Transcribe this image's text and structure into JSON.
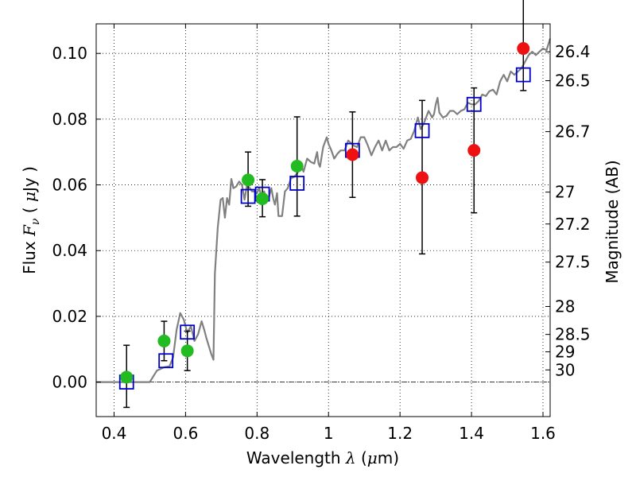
{
  "chart_data": {
    "type": "scatter",
    "xlabel": {
      "prefix": "Wavelength ",
      "symbol": "λ",
      "unit_open": " (",
      "unit_mu": "μ",
      "unit_close": "m)"
    },
    "ylabel": {
      "prefix": "Flux ",
      "symbol": "F",
      "sub": "ν",
      "unit_open": " ( ",
      "unit_mu": "μ",
      "unit_close": "Jy )"
    },
    "ylabel_right": "Magnitude (AB)",
    "xlim": [
      0.35,
      1.62
    ],
    "ylim": [
      -0.0105,
      0.109
    ],
    "x_ticks": [
      0.4,
      0.6,
      0.8,
      1.0,
      1.2,
      1.4,
      1.6
    ],
    "x_tick_labels": [
      "0.4",
      "0.6",
      "0.8",
      "1",
      "1.2",
      "1.4",
      "1.6"
    ],
    "y_ticks": [
      0.0,
      0.02,
      0.04,
      0.06,
      0.08,
      0.1
    ],
    "y_tick_labels": [
      "0.00",
      "0.02",
      "0.04",
      "0.06",
      "0.08",
      "0.10"
    ],
    "right_ticks": [
      {
        "label": "26.4",
        "flux": 0.1005
      },
      {
        "label": "26.5",
        "flux": 0.0917
      },
      {
        "label": "26.7",
        "flux": 0.0762
      },
      {
        "label": "27",
        "flux": 0.0578
      },
      {
        "label": "27.2",
        "flux": 0.0481
      },
      {
        "label": "27.5",
        "flux": 0.0365
      },
      {
        "label": "28",
        "flux": 0.023
      },
      {
        "label": "28.5",
        "flux": 0.0145
      },
      {
        "label": "29",
        "flux": 0.0092
      },
      {
        "label": "30",
        "flux": 0.0037
      }
    ],
    "grid": true,
    "zero_line": true,
    "model_spectrum": {
      "color": "#808080",
      "points": [
        [
          0.35,
          0.0
        ],
        [
          0.48,
          0.0
        ],
        [
          0.5,
          0.0
        ],
        [
          0.52,
          0.0035
        ],
        [
          0.54,
          0.0045
        ],
        [
          0.555,
          0.0048
        ],
        [
          0.565,
          0.0075
        ],
        [
          0.575,
          0.016
        ],
        [
          0.585,
          0.021
        ],
        [
          0.595,
          0.019
        ],
        [
          0.605,
          0.015
        ],
        [
          0.615,
          0.017
        ],
        [
          0.625,
          0.0125
        ],
        [
          0.635,
          0.0145
        ],
        [
          0.645,
          0.0185
        ],
        [
          0.652,
          0.016
        ],
        [
          0.658,
          0.0135
        ],
        [
          0.665,
          0.011
        ],
        [
          0.672,
          0.0085
        ],
        [
          0.678,
          0.0068
        ],
        [
          0.682,
          0.033
        ],
        [
          0.69,
          0.047
        ],
        [
          0.698,
          0.0555
        ],
        [
          0.704,
          0.056
        ],
        [
          0.71,
          0.05
        ],
        [
          0.716,
          0.056
        ],
        [
          0.722,
          0.054
        ],
        [
          0.728,
          0.0618
        ],
        [
          0.734,
          0.059
        ],
        [
          0.742,
          0.0595
        ],
        [
          0.75,
          0.061
        ],
        [
          0.758,
          0.06
        ],
        [
          0.765,
          0.0555
        ],
        [
          0.772,
          0.06
        ],
        [
          0.78,
          0.059
        ],
        [
          0.786,
          0.058
        ],
        [
          0.792,
          0.058
        ],
        [
          0.8,
          0.0575
        ],
        [
          0.806,
          0.059
        ],
        [
          0.812,
          0.0565
        ],
        [
          0.82,
          0.058
        ],
        [
          0.826,
          0.0555
        ],
        [
          0.834,
          0.0565
        ],
        [
          0.84,
          0.059
        ],
        [
          0.845,
          0.056
        ],
        [
          0.85,
          0.054
        ],
        [
          0.856,
          0.0575
        ],
        [
          0.86,
          0.0505
        ],
        [
          0.87,
          0.0505
        ],
        [
          0.878,
          0.058
        ],
        [
          0.886,
          0.059
        ],
        [
          0.895,
          0.062
        ],
        [
          0.905,
          0.0625
        ],
        [
          0.915,
          0.064
        ],
        [
          0.922,
          0.0665
        ],
        [
          0.93,
          0.064
        ],
        [
          0.94,
          0.068
        ],
        [
          0.95,
          0.067
        ],
        [
          0.96,
          0.0665
        ],
        [
          0.968,
          0.07
        ],
        [
          0.972,
          0.0665
        ],
        [
          0.976,
          0.0655
        ],
        [
          0.985,
          0.0715
        ],
        [
          0.995,
          0.0745
        ],
        [
          1.0,
          0.0725
        ],
        [
          1.008,
          0.0705
        ],
        [
          1.016,
          0.068
        ],
        [
          1.025,
          0.0695
        ],
        [
          1.034,
          0.0705
        ],
        [
          1.045,
          0.0705
        ],
        [
          1.055,
          0.0735
        ],
        [
          1.07,
          0.072
        ],
        [
          1.08,
          0.0715
        ],
        [
          1.09,
          0.0745
        ],
        [
          1.1,
          0.0745
        ],
        [
          1.11,
          0.072
        ],
        [
          1.12,
          0.069
        ],
        [
          1.13,
          0.0715
        ],
        [
          1.14,
          0.0735
        ],
        [
          1.15,
          0.0705
        ],
        [
          1.16,
          0.0735
        ],
        [
          1.17,
          0.0705
        ],
        [
          1.18,
          0.0715
        ],
        [
          1.19,
          0.0715
        ],
        [
          1.2,
          0.0725
        ],
        [
          1.21,
          0.071
        ],
        [
          1.22,
          0.0735
        ],
        [
          1.23,
          0.074
        ],
        [
          1.24,
          0.0765
        ],
        [
          1.25,
          0.0805
        ],
        [
          1.258,
          0.077
        ],
        [
          1.266,
          0.0785
        ],
        [
          1.28,
          0.0825
        ],
        [
          1.29,
          0.0805
        ],
        [
          1.295,
          0.0815
        ],
        [
          1.3,
          0.0845
        ],
        [
          1.305,
          0.0865
        ],
        [
          1.31,
          0.082
        ],
        [
          1.32,
          0.0805
        ],
        [
          1.33,
          0.081
        ],
        [
          1.34,
          0.0825
        ],
        [
          1.35,
          0.0825
        ],
        [
          1.36,
          0.0815
        ],
        [
          1.37,
          0.0825
        ],
        [
          1.38,
          0.083
        ],
        [
          1.39,
          0.085
        ],
        [
          1.4,
          0.0845
        ],
        [
          1.41,
          0.0845
        ],
        [
          1.42,
          0.0855
        ],
        [
          1.43,
          0.0875
        ],
        [
          1.44,
          0.087
        ],
        [
          1.45,
          0.0885
        ],
        [
          1.46,
          0.089
        ],
        [
          1.47,
          0.0875
        ],
        [
          1.48,
          0.0915
        ],
        [
          1.49,
          0.0935
        ],
        [
          1.5,
          0.0915
        ],
        [
          1.51,
          0.0945
        ],
        [
          1.52,
          0.0935
        ],
        [
          1.53,
          0.0945
        ],
        [
          1.54,
          0.0955
        ],
        [
          1.55,
          0.0975
        ],
        [
          1.56,
          0.0995
        ],
        [
          1.57,
          0.1005
        ],
        [
          1.58,
          0.0995
        ],
        [
          1.59,
          0.1005
        ],
        [
          1.6,
          0.1015
        ],
        [
          1.61,
          0.101
        ],
        [
          1.62,
          0.1045
        ]
      ]
    },
    "model_photometry": {
      "color": "#0000cc",
      "points": [
        [
          0.435,
          0.0
        ],
        [
          0.545,
          0.0065
        ],
        [
          0.605,
          0.0152
        ],
        [
          0.775,
          0.0565
        ],
        [
          0.815,
          0.0572
        ],
        [
          0.912,
          0.0605
        ],
        [
          1.067,
          0.0705
        ],
        [
          1.262,
          0.0765
        ],
        [
          1.407,
          0.0845
        ],
        [
          1.545,
          0.0935
        ]
      ]
    },
    "observed": [
      {
        "x": 0.435,
        "y": 0.0015,
        "yerr_low": 0.0092,
        "yerr_high": 0.0097,
        "color": "#22bb22"
      },
      {
        "x": 0.54,
        "y": 0.0125,
        "yerr_low": 0.006,
        "yerr_high": 0.006,
        "color": "#22bb22"
      },
      {
        "x": 0.605,
        "y": 0.0095,
        "yerr_low": 0.006,
        "yerr_high": 0.006,
        "color": "#22bb22"
      },
      {
        "x": 0.775,
        "y": 0.0615,
        "yerr_low": 0.008,
        "yerr_high": 0.0085,
        "color": "#22bb22"
      },
      {
        "x": 0.815,
        "y": 0.0558,
        "yerr_low": 0.0055,
        "yerr_high": 0.0058,
        "color": "#22bb22"
      },
      {
        "x": 0.912,
        "y": 0.0657,
        "yerr_low": 0.0152,
        "yerr_high": 0.015,
        "color": "#22bb22"
      },
      {
        "x": 1.067,
        "y": 0.0692,
        "yerr_low": 0.013,
        "yerr_high": 0.013,
        "color": "#ee1111"
      },
      {
        "x": 1.262,
        "y": 0.0622,
        "yerr_low": 0.0232,
        "yerr_high": 0.0235,
        "color": "#ee1111"
      },
      {
        "x": 1.407,
        "y": 0.0705,
        "yerr_low": 0.019,
        "yerr_high": 0.019,
        "color": "#ee1111"
      },
      {
        "x": 1.545,
        "y": 0.1015,
        "yerr_low": 0.0128,
        "yerr_high": 0.0155,
        "color": "#ee1111"
      }
    ]
  }
}
